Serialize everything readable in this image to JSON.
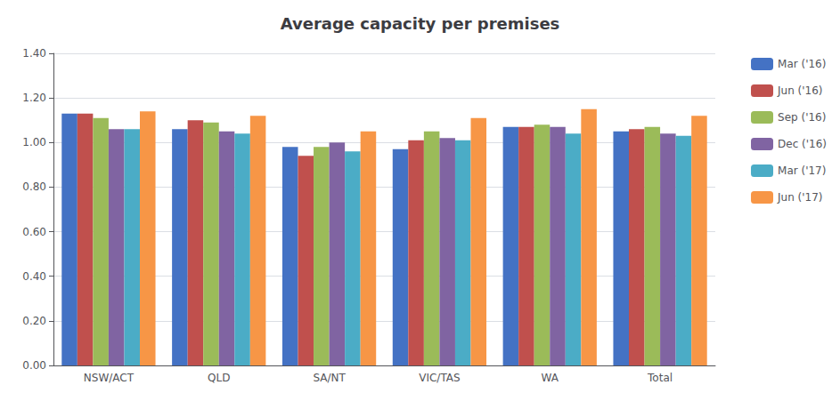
{
  "chart_data": {
    "type": "bar",
    "title": "Average capacity per premises",
    "categories": [
      "NSW/ACT",
      "QLD",
      "SA/NT",
      "VIC/TAS",
      "WA",
      "Total"
    ],
    "series": [
      {
        "name": "Mar ('16)",
        "color": "#4472C4",
        "values": [
          1.13,
          1.06,
          0.98,
          0.97,
          1.07,
          1.05
        ]
      },
      {
        "name": "Jun ('16)",
        "color": "#C0504D",
        "values": [
          1.13,
          1.1,
          0.94,
          1.01,
          1.07,
          1.06
        ]
      },
      {
        "name": "Sep ('16)",
        "color": "#9BBB59",
        "values": [
          1.11,
          1.09,
          0.98,
          1.05,
          1.08,
          1.07
        ]
      },
      {
        "name": "Dec ('16)",
        "color": "#8064A2",
        "values": [
          1.06,
          1.05,
          1.0,
          1.02,
          1.07,
          1.04
        ]
      },
      {
        "name": "Mar ('17)",
        "color": "#4BACC6",
        "values": [
          1.06,
          1.04,
          0.96,
          1.01,
          1.04,
          1.03
        ]
      },
      {
        "name": "Jun ('17)",
        "color": "#F79646",
        "values": [
          1.14,
          1.12,
          1.05,
          1.11,
          1.15,
          1.12
        ]
      }
    ],
    "ylim": [
      0.0,
      1.4
    ],
    "yticks": [
      {
        "value": 0.0,
        "label": "0.00"
      },
      {
        "value": 0.2,
        "label": "0.20"
      },
      {
        "value": 0.4,
        "label": "0.40"
      },
      {
        "value": 0.6,
        "label": "0.60"
      },
      {
        "value": 0.8,
        "label": "0.80"
      },
      {
        "value": 1.0,
        "label": "1.00"
      },
      {
        "value": 1.2,
        "label": "1.20"
      },
      {
        "value": 1.4,
        "label": "1.40"
      }
    ],
    "grid": true,
    "legend": "right"
  }
}
